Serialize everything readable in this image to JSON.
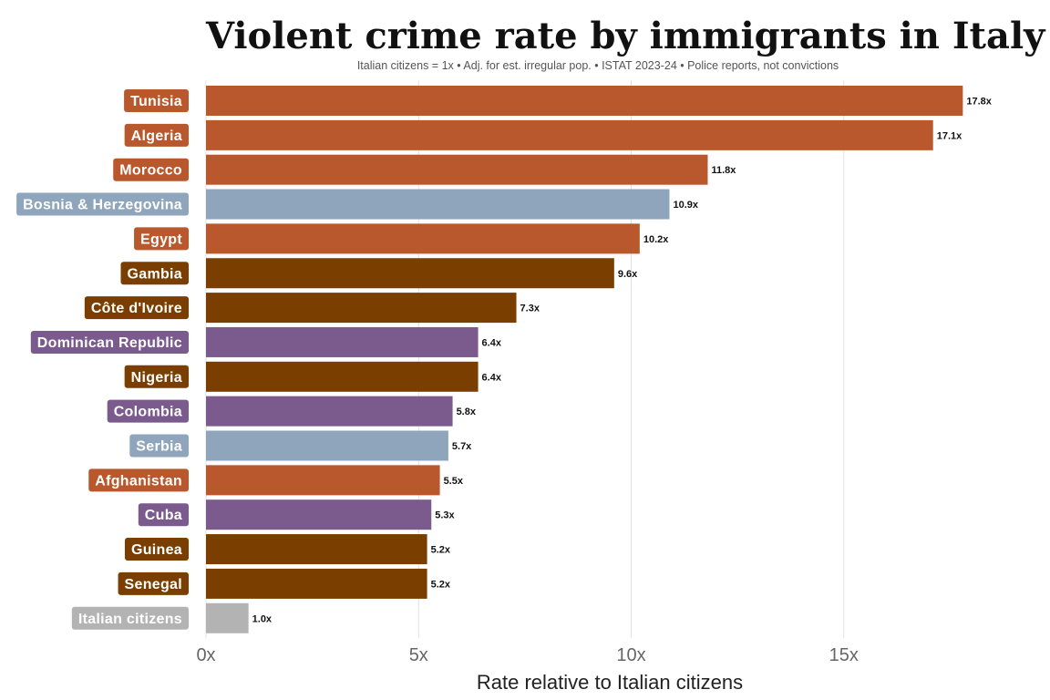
{
  "chart_data": {
    "type": "bar",
    "orientation": "horizontal",
    "title": "Violent crime rate by immigrants in Italy",
    "subtitle": "Italian citizens = 1x • Adj. for est. irregular pop. • ISTAT 2023-24 • Police reports, not convictions",
    "xlabel": "Rate relative to Italian citizens",
    "ylabel": "",
    "xlim": [
      0,
      18.5
    ],
    "xticks": [
      0,
      5,
      10,
      15
    ],
    "xtick_labels": [
      "0x",
      "5x",
      "10x",
      "15x"
    ],
    "grid": "vertical",
    "categories": [
      "Tunisia",
      "Algeria",
      "Morocco",
      "Bosnia & Herzegovina",
      "Egypt",
      "Gambia",
      "Côte d'Ivoire",
      "Dominican Republic",
      "Nigeria",
      "Colombia",
      "Serbia",
      "Afghanistan",
      "Cuba",
      "Guinea",
      "Senegal",
      "Italian citizens"
    ],
    "values": [
      17.8,
      17.1,
      11.8,
      10.9,
      10.2,
      9.6,
      7.3,
      6.4,
      6.4,
      5.8,
      5.7,
      5.5,
      5.3,
      5.2,
      5.2,
      1.0
    ],
    "value_labels": [
      "17.8x",
      "17.1x",
      "11.8x",
      "10.9x",
      "10.2x",
      "9.6x",
      "7.3x",
      "6.4x",
      "6.4x",
      "5.8x",
      "5.7x",
      "5.5x",
      "5.3x",
      "5.2x",
      "5.2x",
      "1.0x"
    ],
    "bar_colors": [
      "#b8582c",
      "#b8582c",
      "#b8582c",
      "#8fa5bc",
      "#b8582c",
      "#7a3f00",
      "#7a3f00",
      "#7b5a8e",
      "#7a3f00",
      "#7b5a8e",
      "#8fa5bc",
      "#b8582c",
      "#7b5a8e",
      "#7a3f00",
      "#7a3f00",
      "#b3b3b3"
    ]
  }
}
